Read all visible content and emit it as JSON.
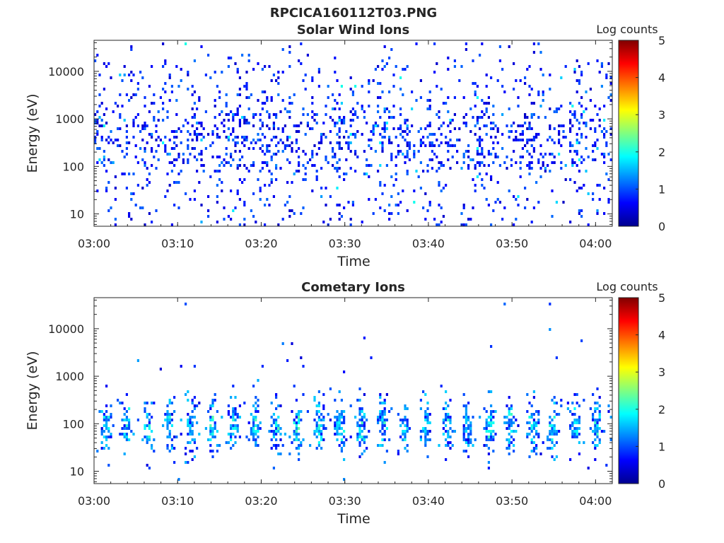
{
  "figure_title": "RPCICA160112T03.PNG",
  "colormap": [
    "#00008f",
    "#0000ff",
    "#0080ff",
    "#00ffff",
    "#80ff80",
    "#ffff00",
    "#ff8000",
    "#ff0000",
    "#800000"
  ],
  "chart_data": [
    {
      "type": "heatmap",
      "title": "Solar Wind Ions",
      "xlabel": "Time",
      "ylabel": "Energy (eV)",
      "x_ticks": [
        "03:00",
        "03:10",
        "03:20",
        "03:30",
        "03:40",
        "03:50",
        "04:00"
      ],
      "x_tick_minutes": [
        0,
        10,
        20,
        30,
        40,
        50,
        60
      ],
      "xlim_minutes": [
        0,
        62
      ],
      "y_scale": "log",
      "ylim": [
        5.5,
        45000
      ],
      "y_ticks": [
        10,
        100,
        1000,
        10000
      ],
      "y_tick_labels": [
        "10",
        "100",
        "1000",
        "10000"
      ],
      "colorbar": {
        "label": "Log counts",
        "range": [
          0,
          5
        ],
        "ticks": [
          "0",
          "1",
          "2",
          "3",
          "4",
          "5"
        ]
      },
      "grid": false,
      "pattern": "sparse counts across 5 eV – 40 keV, denser 100–3000 eV, mostly 0–1 log counts with occasional 1.5–2"
    },
    {
      "type": "heatmap",
      "title": "Cometary Ions",
      "xlabel": "Time",
      "ylabel": "Energy (eV)",
      "x_ticks": [
        "03:00",
        "03:10",
        "03:20",
        "03:30",
        "03:40",
        "03:50",
        "04:00"
      ],
      "x_tick_minutes": [
        0,
        10,
        20,
        30,
        40,
        50,
        60
      ],
      "xlim_minutes": [
        0,
        62
      ],
      "y_scale": "log",
      "ylim": [
        5.5,
        45000
      ],
      "y_ticks": [
        10,
        100,
        1000,
        10000
      ],
      "y_tick_labels": [
        "10",
        "100",
        "1000",
        "10000"
      ],
      "colorbar": {
        "label": "Log counts",
        "range": [
          0,
          5
        ],
        "ticks": [
          "0",
          "1",
          "2",
          "3",
          "4",
          "5"
        ]
      },
      "grid": false,
      "pattern": "dense bursts between ~10 and ~500 eV roughly every 2–3 minutes, values 0.5–2.5 log counts, few counts above 1 keV"
    }
  ]
}
